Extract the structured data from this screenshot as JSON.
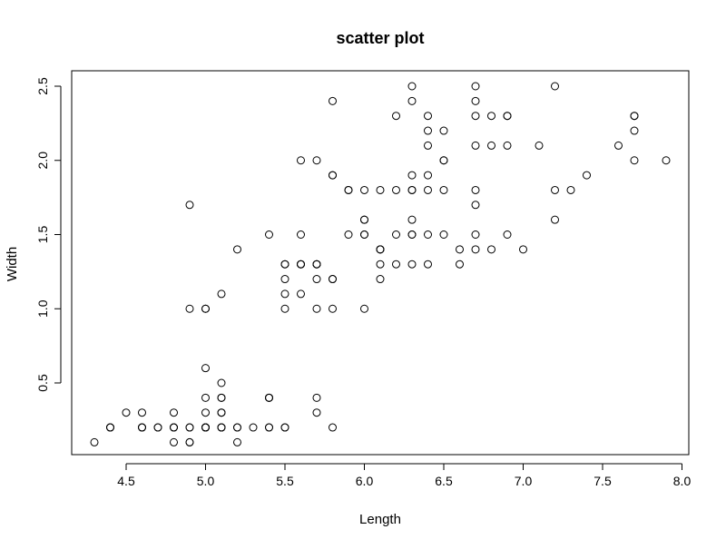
{
  "chart_data": {
    "type": "scatter",
    "title": "scatter plot",
    "xlabel": "Length",
    "ylabel": "Width",
    "xlim": [
      4.3,
      7.9
    ],
    "ylim": [
      0.1,
      2.5
    ],
    "x_ticks": [
      4.5,
      5.0,
      5.5,
      6.0,
      6.5,
      7.0,
      7.5,
      8.0
    ],
    "x_tick_labels": [
      "4.5",
      "5.0",
      "5.5",
      "6.0",
      "6.5",
      "7.0",
      "7.5",
      "8.0"
    ],
    "y_ticks": [
      0.5,
      1.0,
      1.5,
      2.0,
      2.5
    ],
    "y_tick_labels": [
      "0.5",
      "1.0",
      "1.5",
      "2.0",
      "2.5"
    ],
    "grid": false,
    "legend": "none",
    "point_style": "open-circle",
    "series": [
      {
        "points": [
          [
            5.1,
            0.2
          ],
          [
            4.9,
            0.2
          ],
          [
            4.7,
            0.2
          ],
          [
            4.6,
            0.2
          ],
          [
            5.0,
            0.2
          ],
          [
            5.4,
            0.4
          ],
          [
            4.6,
            0.3
          ],
          [
            5.0,
            0.2
          ],
          [
            4.4,
            0.2
          ],
          [
            4.9,
            0.1
          ],
          [
            5.4,
            0.2
          ],
          [
            4.8,
            0.2
          ],
          [
            4.8,
            0.1
          ],
          [
            4.3,
            0.1
          ],
          [
            5.8,
            0.2
          ],
          [
            5.7,
            0.4
          ],
          [
            5.4,
            0.4
          ],
          [
            5.1,
            0.3
          ],
          [
            5.7,
            0.3
          ],
          [
            5.1,
            0.3
          ],
          [
            5.4,
            0.2
          ],
          [
            5.1,
            0.4
          ],
          [
            4.6,
            0.2
          ],
          [
            5.1,
            0.5
          ],
          [
            4.8,
            0.2
          ],
          [
            5.0,
            0.2
          ],
          [
            5.0,
            0.4
          ],
          [
            5.2,
            0.2
          ],
          [
            5.2,
            0.2
          ],
          [
            4.7,
            0.2
          ],
          [
            4.8,
            0.2
          ],
          [
            5.4,
            0.4
          ],
          [
            5.2,
            0.1
          ],
          [
            5.5,
            0.2
          ],
          [
            4.9,
            0.2
          ],
          [
            5.0,
            0.2
          ],
          [
            5.5,
            0.2
          ],
          [
            4.9,
            0.1
          ],
          [
            4.4,
            0.2
          ],
          [
            5.1,
            0.2
          ],
          [
            5.0,
            0.3
          ],
          [
            4.5,
            0.3
          ],
          [
            4.4,
            0.2
          ],
          [
            5.0,
            0.6
          ],
          [
            5.1,
            0.4
          ],
          [
            4.8,
            0.3
          ],
          [
            5.1,
            0.2
          ],
          [
            4.6,
            0.2
          ],
          [
            5.3,
            0.2
          ],
          [
            5.0,
            0.2
          ],
          [
            7.0,
            1.4
          ],
          [
            6.4,
            1.5
          ],
          [
            6.9,
            1.5
          ],
          [
            5.5,
            1.3
          ],
          [
            6.5,
            1.5
          ],
          [
            5.7,
            1.3
          ],
          [
            6.3,
            1.6
          ],
          [
            4.9,
            1.0
          ],
          [
            6.6,
            1.3
          ],
          [
            5.2,
            1.4
          ],
          [
            5.0,
            1.0
          ],
          [
            5.9,
            1.5
          ],
          [
            6.0,
            1.0
          ],
          [
            6.1,
            1.4
          ],
          [
            5.6,
            1.3
          ],
          [
            6.7,
            1.4
          ],
          [
            5.6,
            1.5
          ],
          [
            5.8,
            1.0
          ],
          [
            6.2,
            1.5
          ],
          [
            5.6,
            1.1
          ],
          [
            5.9,
            1.8
          ],
          [
            6.1,
            1.3
          ],
          [
            6.3,
            1.5
          ],
          [
            6.1,
            1.2
          ],
          [
            6.4,
            1.3
          ],
          [
            6.6,
            1.4
          ],
          [
            6.8,
            1.4
          ],
          [
            6.7,
            1.7
          ],
          [
            6.0,
            1.5
          ],
          [
            5.7,
            1.0
          ],
          [
            5.5,
            1.1
          ],
          [
            5.5,
            1.0
          ],
          [
            5.8,
            1.2
          ],
          [
            6.0,
            1.6
          ],
          [
            5.4,
            1.5
          ],
          [
            6.0,
            1.6
          ],
          [
            6.7,
            1.5
          ],
          [
            6.3,
            1.3
          ],
          [
            5.6,
            1.3
          ],
          [
            5.5,
            1.3
          ],
          [
            5.5,
            1.2
          ],
          [
            6.1,
            1.4
          ],
          [
            5.8,
            1.2
          ],
          [
            5.0,
            1.0
          ],
          [
            5.6,
            1.3
          ],
          [
            5.7,
            1.2
          ],
          [
            5.7,
            1.3
          ],
          [
            6.2,
            1.3
          ],
          [
            5.1,
            1.1
          ],
          [
            5.7,
            1.3
          ],
          [
            6.3,
            2.5
          ],
          [
            5.8,
            1.9
          ],
          [
            7.1,
            2.1
          ],
          [
            6.3,
            1.8
          ],
          [
            6.5,
            2.2
          ],
          [
            7.6,
            2.1
          ],
          [
            4.9,
            1.7
          ],
          [
            7.3,
            1.8
          ],
          [
            6.7,
            1.8
          ],
          [
            7.2,
            2.5
          ],
          [
            6.5,
            2.0
          ],
          [
            6.4,
            1.9
          ],
          [
            6.8,
            2.1
          ],
          [
            5.7,
            2.0
          ],
          [
            5.8,
            2.4
          ],
          [
            6.4,
            2.3
          ],
          [
            6.5,
            1.8
          ],
          [
            7.7,
            2.2
          ],
          [
            7.7,
            2.3
          ],
          [
            6.0,
            1.5
          ],
          [
            6.9,
            2.3
          ],
          [
            5.6,
            2.0
          ],
          [
            7.7,
            2.0
          ],
          [
            6.3,
            1.8
          ],
          [
            6.7,
            2.1
          ],
          [
            7.2,
            1.8
          ],
          [
            6.2,
            1.8
          ],
          [
            6.1,
            1.8
          ],
          [
            6.4,
            2.1
          ],
          [
            7.2,
            1.6
          ],
          [
            7.4,
            1.9
          ],
          [
            7.9,
            2.0
          ],
          [
            6.4,
            2.2
          ],
          [
            6.3,
            1.5
          ],
          [
            6.1,
            1.4
          ],
          [
            7.7,
            2.3
          ],
          [
            6.3,
            2.4
          ],
          [
            6.4,
            1.8
          ],
          [
            6.0,
            1.8
          ],
          [
            6.9,
            2.1
          ],
          [
            6.7,
            2.4
          ],
          [
            6.9,
            2.3
          ],
          [
            5.8,
            1.9
          ],
          [
            6.8,
            2.3
          ],
          [
            6.7,
            2.5
          ],
          [
            6.7,
            2.3
          ],
          [
            6.3,
            1.9
          ],
          [
            6.5,
            2.0
          ],
          [
            6.2,
            2.3
          ],
          [
            5.9,
            1.8
          ]
        ]
      }
    ]
  }
}
